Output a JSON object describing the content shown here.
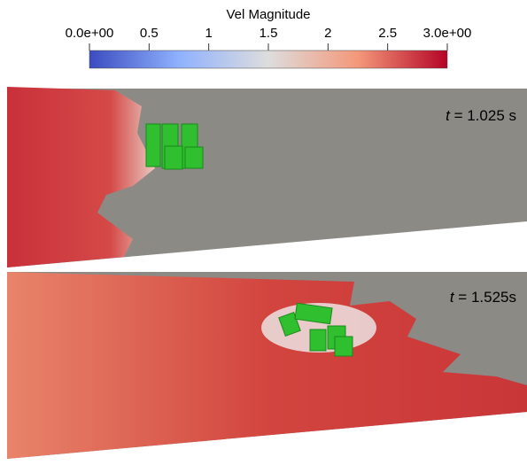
{
  "colorbar": {
    "title": "Vel Magnitude",
    "range": [
      0,
      3
    ],
    "ticks": [
      {
        "value": 0,
        "label": "0.0e+00"
      },
      0.5,
      1,
      1.5,
      2,
      2.5,
      {
        "value": 3,
        "label": "3.0e+00"
      }
    ]
  },
  "panels": [
    {
      "time_symbol": "t",
      "time_text": "= 1.025 s"
    },
    {
      "time_symbol": "t",
      "time_text": "= 1.525s"
    }
  ]
}
